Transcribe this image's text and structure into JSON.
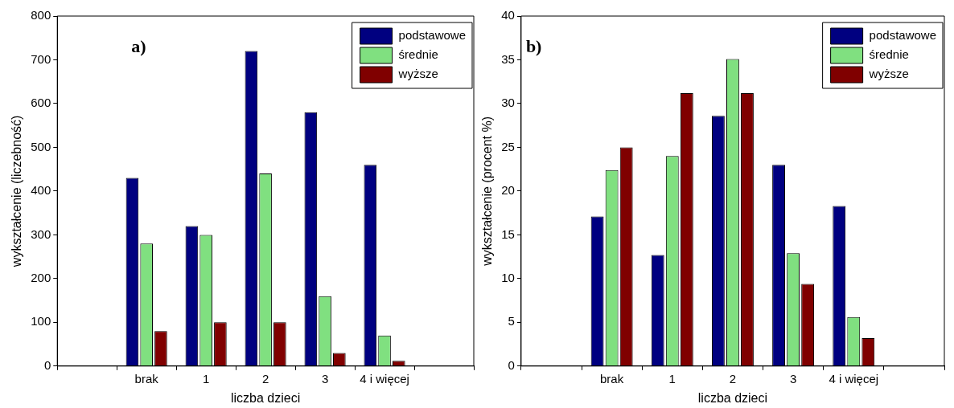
{
  "chart_data": [
    {
      "type": "bar",
      "xlabel": "liczba dzieci",
      "ylabel": "wykształcenie (liczebność)",
      "annotations": [
        "a)"
      ],
      "categories": [
        null,
        "brak",
        "1",
        "2",
        "3",
        "4 i więcej",
        null
      ],
      "ylim": [
        0,
        800
      ],
      "yticks": [
        0,
        100,
        200,
        300,
        400,
        500,
        600,
        700,
        800
      ],
      "grid": false,
      "legend": "top right",
      "series": [
        {
          "name": "podstawowe",
          "color": "#000080",
          "values": [
            null,
            430,
            320,
            720,
            580,
            460,
            null
          ]
        },
        {
          "name": "średnie",
          "color": "#80e080",
          "values": [
            null,
            280,
            300,
            440,
            160,
            70,
            null
          ]
        },
        {
          "name": "wyższe",
          "color": "#800000",
          "values": [
            null,
            80,
            100,
            100,
            30,
            12,
            null
          ]
        }
      ]
    },
    {
      "type": "bar",
      "xlabel": "liczba dzieci",
      "ylabel": "wykształcenie (procent %)",
      "annotations": [
        "b)"
      ],
      "categories": [
        null,
        "brak",
        "1",
        "2",
        "3",
        "4 i więcej",
        null
      ],
      "ylim": [
        0,
        40
      ],
      "yticks": [
        0,
        5,
        10,
        15,
        20,
        25,
        30,
        35,
        40
      ],
      "grid": false,
      "legend": "top right",
      "series": [
        {
          "name": "podstawowe",
          "color": "#000080",
          "values": [
            null,
            17.1,
            12.7,
            28.6,
            23.0,
            18.3,
            null
          ]
        },
        {
          "name": "średnie",
          "color": "#80e080",
          "values": [
            null,
            22.4,
            24.0,
            35.1,
            12.9,
            5.6,
            null
          ]
        },
        {
          "name": "wyższe",
          "color": "#800000",
          "values": [
            null,
            25.0,
            31.2,
            31.2,
            9.4,
            3.2,
            null
          ]
        }
      ]
    }
  ]
}
